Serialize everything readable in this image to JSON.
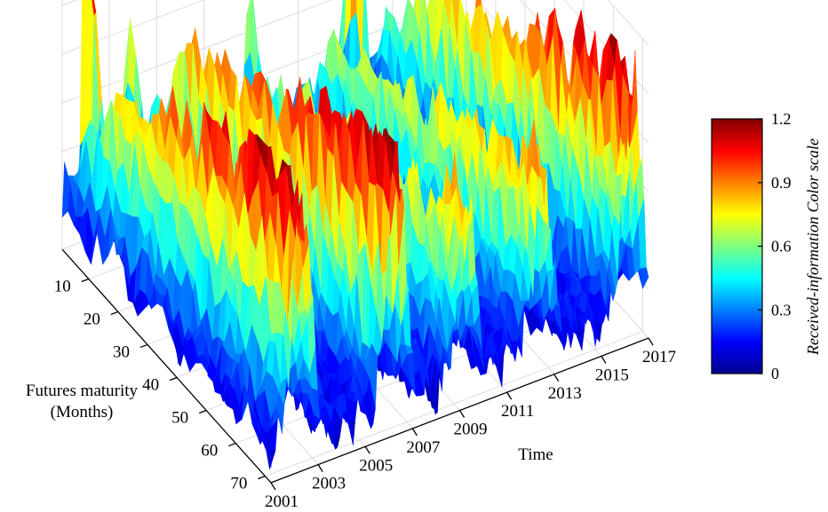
{
  "chart_data": {
    "type": "surface",
    "title": "",
    "xlabel": "Time",
    "ylabel_lines": [
      "Futures maturity",
      "(Months)"
    ],
    "x_ticks": [
      "2001",
      "2003",
      "2005",
      "2007",
      "2009",
      "2011",
      "2013",
      "2015",
      "2017"
    ],
    "y_ticks": [
      "10",
      "20",
      "30",
      "40",
      "50",
      "60",
      "70"
    ],
    "x_range": [
      2001,
      2017
    ],
    "y_range": [
      1,
      72
    ],
    "z_range": [
      0,
      1.2
    ],
    "grid": true,
    "colormap": "jet",
    "colorbar": {
      "title": "Received-information Color scale",
      "ticks": [
        "0",
        "0.3",
        "0.6",
        "0.9",
        "1.2"
      ],
      "range": [
        0,
        1.2
      ],
      "placement": "right"
    },
    "ridges": [
      {
        "t_start": 2001.3,
        "t_end": 2002.3,
        "peak": 1.05
      },
      {
        "t_start": 2004.2,
        "t_end": 2006.3,
        "peak": 1.1
      },
      {
        "t_start": 2007.6,
        "t_end": 2009.3,
        "peak": 0.7
      },
      {
        "t_start": 2010.4,
        "t_end": 2012.5,
        "peak": 0.75
      },
      {
        "t_start": 2013.8,
        "t_end": 2016.3,
        "peak": 1.0
      }
    ],
    "spikes": [
      {
        "t": 2001.9,
        "maturity": 3,
        "value": 1.2
      },
      {
        "t": 2003.6,
        "maturity": 3,
        "value": 0.7
      },
      {
        "t": 2008.8,
        "maturity": 3,
        "value": 0.65
      },
      {
        "t": 2012.6,
        "maturity": 8,
        "value": 1.05
      }
    ],
    "colors": {
      "low": "#00008f",
      "mid": "#7fff7f",
      "high": "#800000"
    }
  }
}
